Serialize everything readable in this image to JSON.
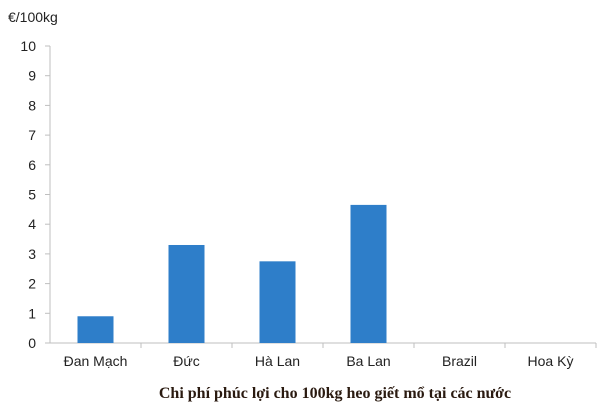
{
  "chart_data": {
    "type": "bar",
    "title": "Chi phí phúc lợi cho 100kg heo giết mổ tại các nước",
    "ylabel": "€/100kg",
    "xlabel": "",
    "categories": [
      "Đan Mạch",
      "Đức",
      "Hà Lan",
      "Ba Lan",
      "Brazil",
      "Hoa Kỳ"
    ],
    "values": [
      0.9,
      3.3,
      2.75,
      4.65,
      0,
      0
    ],
    "ylim": [
      0,
      10
    ],
    "yticks": [
      "0",
      "1",
      "2",
      "3",
      "4",
      "5",
      "6",
      "7",
      "8",
      "9",
      "10"
    ],
    "grid": false,
    "bar_color": "#2e7ec9",
    "axis_color": "#bfbfbf"
  }
}
